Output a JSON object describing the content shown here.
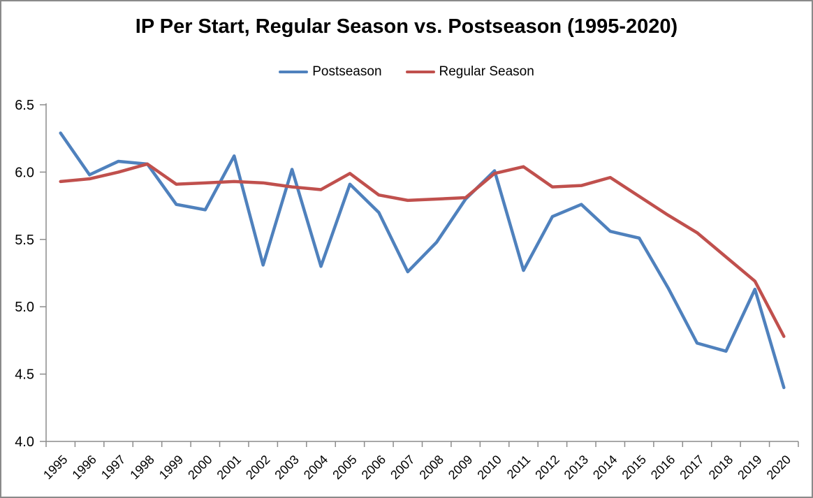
{
  "title": "IP Per Start, Regular Season vs. Postseason (1995-2020)",
  "chart_data": {
    "type": "line",
    "title": "IP Per Start, Regular Season vs. Postseason (1995-2020)",
    "x": [
      "1995",
      "1996",
      "1997",
      "1998",
      "1999",
      "2000",
      "2001",
      "2002",
      "2003",
      "2004",
      "2005",
      "2006",
      "2007",
      "2008",
      "2009",
      "2010",
      "2011",
      "2012",
      "2013",
      "2014",
      "2015",
      "2016",
      "2017",
      "2018",
      "2019",
      "2020"
    ],
    "series": [
      {
        "name": "Postseason",
        "color": "#4F81BD",
        "values": [
          6.29,
          5.98,
          6.08,
          6.06,
          5.76,
          5.72,
          6.12,
          5.31,
          6.02,
          5.3,
          5.91,
          5.7,
          5.26,
          5.48,
          5.8,
          6.01,
          5.27,
          5.67,
          5.76,
          5.56,
          5.51,
          5.14,
          4.73,
          4.67,
          5.13,
          4.4
        ]
      },
      {
        "name": "Regular Season",
        "color": "#C0504D",
        "values": [
          5.93,
          5.95,
          6.0,
          6.06,
          5.91,
          5.92,
          5.93,
          5.92,
          5.89,
          5.87,
          5.99,
          5.83,
          5.79,
          5.8,
          5.81,
          5.99,
          6.04,
          5.89,
          5.9,
          5.96,
          5.82,
          5.68,
          5.55,
          5.37,
          5.19,
          4.78
        ]
      }
    ],
    "xlabel": "",
    "ylabel": "",
    "ylim": [
      4.0,
      6.5
    ],
    "ytick_step": 0.5,
    "ytick_labels": [
      "4.0",
      "4.5",
      "5.0",
      "5.5",
      "6.0",
      "6.5"
    ],
    "grid": false,
    "legend_position": "top",
    "axis_color": "#8C8C8C",
    "label_color": "#000000"
  }
}
